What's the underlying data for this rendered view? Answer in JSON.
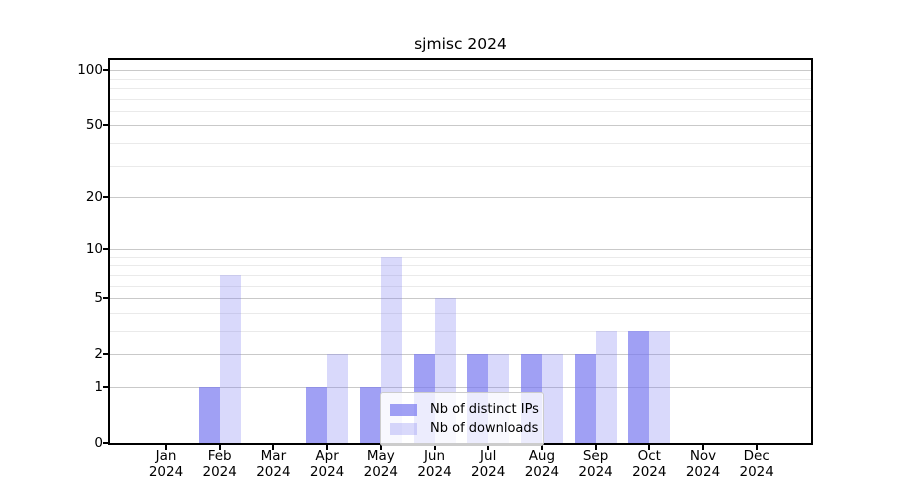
{
  "chart_data": {
    "type": "bar",
    "title": "sjmisc 2024",
    "categories": [
      "Jan",
      "Feb",
      "Mar",
      "Apr",
      "May",
      "Jun",
      "Jul",
      "Aug",
      "Sep",
      "Oct",
      "Nov",
      "Dec"
    ],
    "year": "2024",
    "series": [
      {
        "name": "Nb of distinct IPs",
        "values": [
          0,
          1,
          0,
          1,
          1,
          2,
          2,
          2,
          2,
          3,
          0,
          0
        ],
        "color": "#a9a9f4",
        "fill": "rgba(120,120,240,0.70)"
      },
      {
        "name": "Nb of downloads",
        "values": [
          0,
          7,
          0,
          2,
          9,
          5,
          2,
          2,
          3,
          3,
          0,
          0
        ],
        "color": "#d9d9f8",
        "fill": "rgba(120,120,240,0.28)"
      }
    ],
    "yticks": [
      0,
      1,
      2,
      5,
      10,
      20,
      50,
      100
    ],
    "y_minor": [
      3,
      4,
      6,
      7,
      8,
      9,
      30,
      40,
      60,
      70,
      80,
      90
    ],
    "yscale": "log1p",
    "ylim": [
      0,
      113
    ],
    "xlabel": "",
    "ylabel": "",
    "grid": true,
    "grid_major_color": "#c9c9c9",
    "grid_minor_color": "#eaeaea",
    "legend_position": "inside-bottom-center",
    "axis_color": "#000000",
    "background_color": "#ffffff"
  }
}
